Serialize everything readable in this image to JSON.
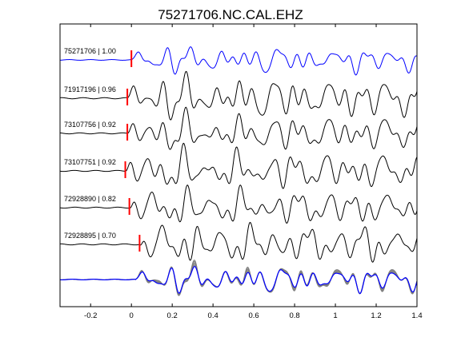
{
  "chart_data": {
    "type": "line",
    "title": "75271706.NC.CAL.EHZ",
    "xlabel": "",
    "ylabel": "",
    "xlim": [
      -0.35,
      1.4
    ],
    "grid": false,
    "x_ticks": [
      -0.2,
      0,
      0.2,
      0.4,
      0.6,
      0.8,
      1,
      1.2,
      1.4
    ],
    "x_tick_labels": [
      "-0.2",
      "0",
      "0.2",
      "0.4",
      "0.6",
      "0.8",
      "1",
      "1.2",
      "1.4"
    ],
    "series": [
      {
        "name": "75271706 | 1.00",
        "id": "75271706",
        "cc": "1.00",
        "color": "#0000ff",
        "pick": 0.0,
        "shift": 0.0,
        "amp": 1.0,
        "seed": 1
      },
      {
        "name": "71917196 | 0.96",
        "id": "71917196",
        "cc": "0.96",
        "color": "#000000",
        "pick": -0.02,
        "shift": -0.02,
        "amp": 1.6,
        "seed": 2
      },
      {
        "name": "73107756 | 0.92",
        "id": "73107756",
        "cc": "0.92",
        "color": "#000000",
        "pick": -0.02,
        "shift": -0.02,
        "amp": 1.4,
        "seed": 3
      },
      {
        "name": "73107751 | 0.92",
        "id": "73107751",
        "cc": "0.92",
        "color": "#000000",
        "pick": -0.03,
        "shift": -0.03,
        "amp": 1.5,
        "seed": 4
      },
      {
        "name": "72928890 | 0.82",
        "id": "72928890",
        "cc": "0.82",
        "color": "#000000",
        "pick": -0.01,
        "shift": -0.01,
        "amp": 1.4,
        "seed": 5
      },
      {
        "name": "72928895 | 0.70",
        "id": "72928895",
        "cc": "0.70",
        "color": "#000000",
        "pick": 0.04,
        "shift": 0.04,
        "amp": 1.5,
        "seed": 6
      }
    ],
    "stack": {
      "name": "aligned stack",
      "reference_color": "#0000ff",
      "others_color": "#808080"
    },
    "pick_color": "#ff0000"
  }
}
